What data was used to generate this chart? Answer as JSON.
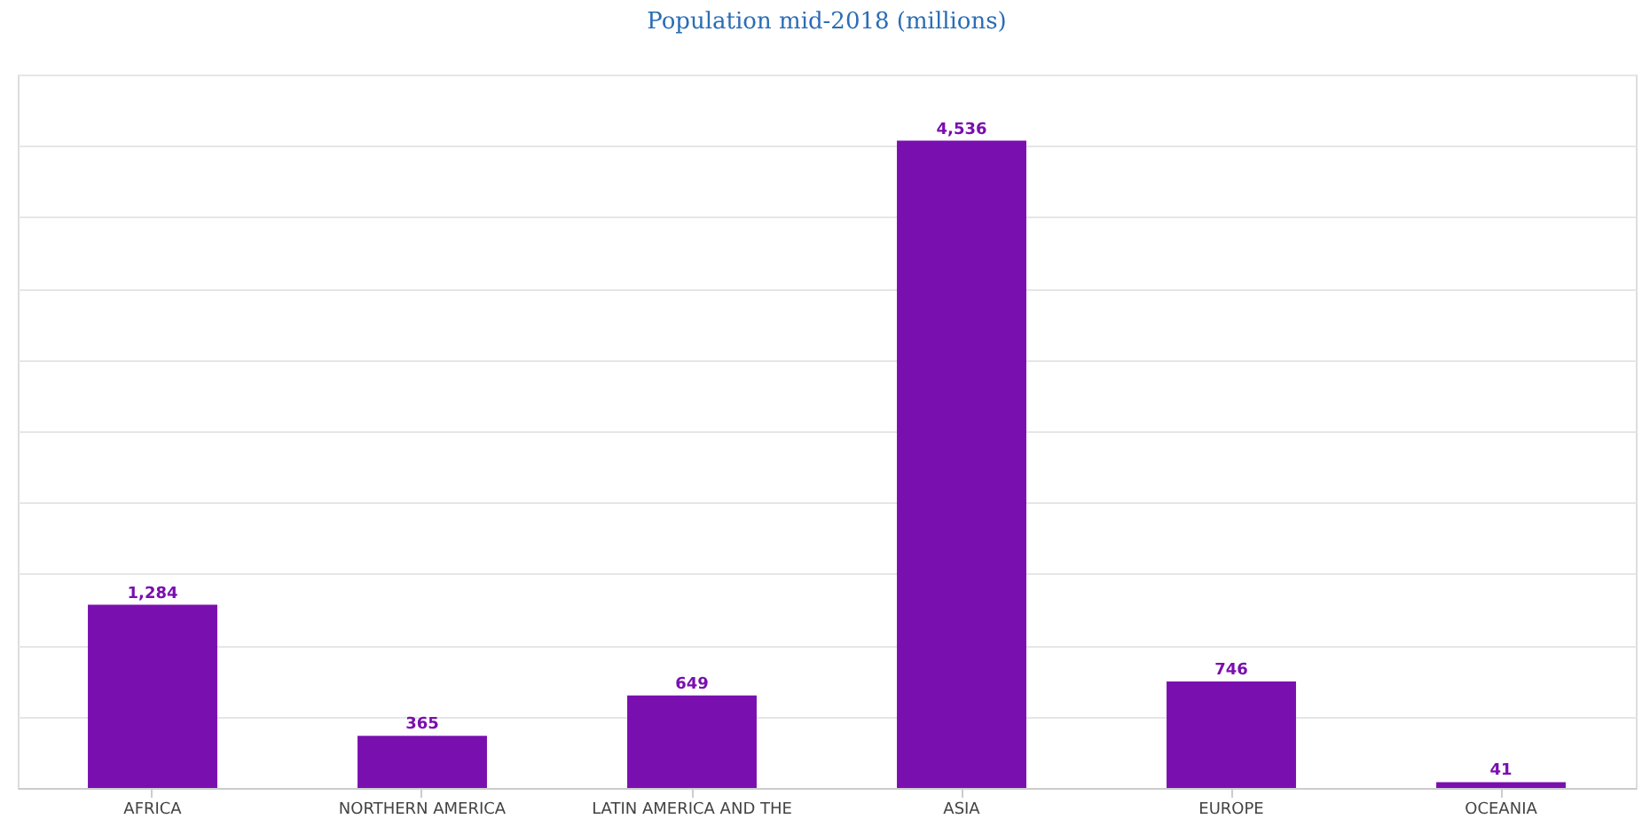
{
  "chart_data": {
    "type": "bar",
    "title": "Population mid-2018 (millions)",
    "categories": [
      "AFRICA",
      "NORTHERN AMERICA",
      "LATIN AMERICA AND THE",
      "ASIA",
      "EUROPE",
      "OCEANIA"
    ],
    "values": [
      1284,
      365,
      649,
      4536,
      746,
      41
    ],
    "value_labels": [
      "1,284",
      "365",
      "649",
      "4,536",
      "746",
      "41"
    ],
    "color": "#7a0fb0",
    "ylim": [
      0,
      5000
    ],
    "yticks": [
      {
        "value": 0,
        "label": null
      },
      {
        "value": 500,
        "label": null
      },
      {
        "value": 1000,
        "label": null
      },
      {
        "value": 1500,
        "label": null
      },
      {
        "value": 2000,
        "label": null
      },
      {
        "value": 2500,
        "label": null
      },
      {
        "value": 3000,
        "label": null
      },
      {
        "value": 3500,
        "label": null
      },
      {
        "value": 4000,
        "label": null
      },
      {
        "value": 4500,
        "label": null
      },
      {
        "value": 5000,
        "label": null
      }
    ],
    "grid": "y",
    "tick_labels": "x"
  }
}
